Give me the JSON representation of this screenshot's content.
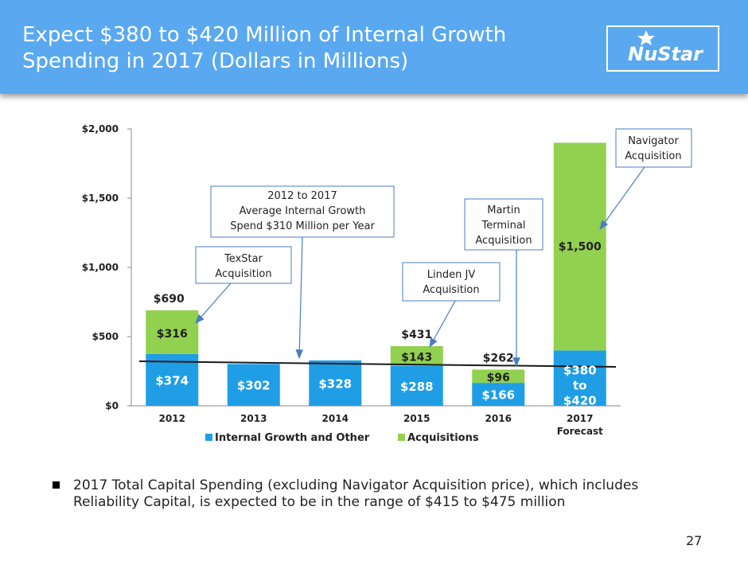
{
  "header": {
    "title_line1": "Expect $380 to $420 Million of Internal Growth",
    "title_line2": "Spending in 2017 (Dollars in Millions)",
    "logo_text": "NuStar",
    "color": "#5aa9f0"
  },
  "chart_data": {
    "type": "bar",
    "stacked": true,
    "categories": [
      "2012",
      "2013",
      "2014",
      "2015",
      "2016",
      "2017"
    ],
    "category_sublabels": [
      "",
      "",
      "",
      "",
      "",
      "Forecast"
    ],
    "series": [
      {
        "name": "Internal Growth and Other",
        "color": "#1f9ee6",
        "values": [
          374,
          302,
          328,
          288,
          166,
          400
        ],
        "labels": [
          "$374",
          "$302",
          "$328",
          "$288",
          "$166",
          "$380\nto\n$420"
        ]
      },
      {
        "name": "Acquisitions",
        "color": "#92d050",
        "values": [
          316,
          0,
          0,
          143,
          96,
          1500
        ],
        "labels": [
          "$316",
          "",
          "",
          "$143",
          "$96",
          "$1,500"
        ]
      }
    ],
    "totals": [
      "$690",
      "",
      "",
      "$431",
      "$262",
      ""
    ],
    "ylim": [
      0,
      2000
    ],
    "yticks": [
      0,
      500,
      1000,
      1500,
      2000
    ],
    "ytick_labels": [
      "$0",
      "$500",
      "$1,000",
      "$1,500",
      "$2,000"
    ],
    "average_line_value": 310,
    "legend_position": "bottom",
    "annotations": [
      {
        "text": "2012 to 2017\nAverage Internal Growth\nSpend $310 Million  per Year",
        "target": "average-line"
      },
      {
        "text": "TexStar\nAcquisition",
        "target": "2012"
      },
      {
        "text": "Linden JV\nAcquisition",
        "target": "2015"
      },
      {
        "text": "Martin\nTerminal\nAcquisition",
        "target": "2016"
      },
      {
        "text": "Navigator\nAcquisition",
        "target": "2017"
      }
    ]
  },
  "bullet": {
    "text": "2017 Total Capital Spending (excluding Navigator Acquisition price), which includes Reliability Capital, is expected to be in the range of $415 to $475 million"
  },
  "page_number": "27"
}
